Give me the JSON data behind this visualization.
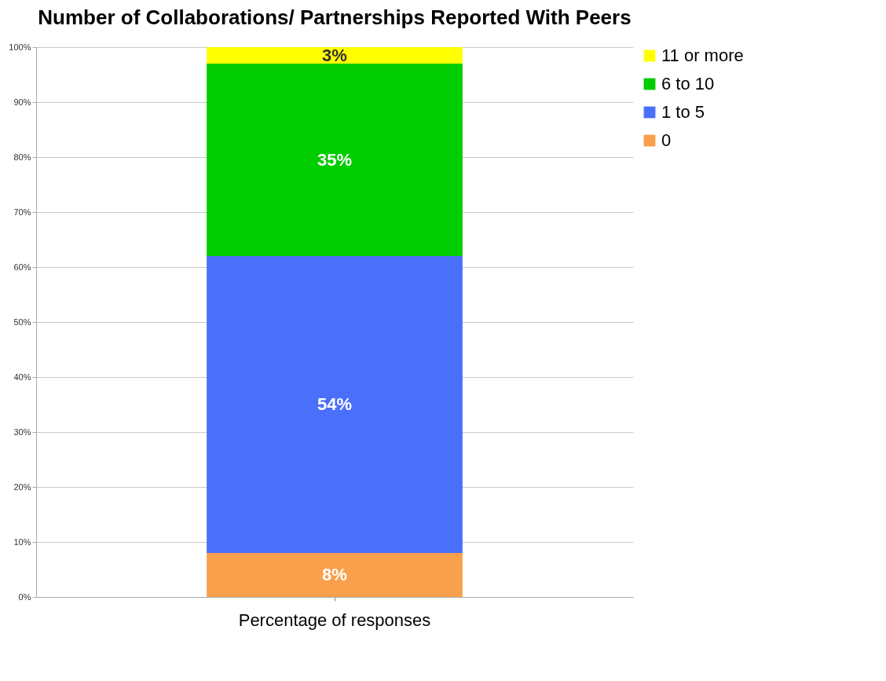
{
  "chart_data": {
    "type": "bar",
    "title": "Number of Collaborations/ Partnerships Reported With Peers",
    "categories": [
      "Percentage of responses"
    ],
    "stacked": true,
    "series": [
      {
        "name": "0",
        "color": "#f9a04c",
        "values": [
          8
        ],
        "value_labels": [
          "8%"
        ]
      },
      {
        "name": "1 to 5",
        "color": "#4a6ffb",
        "values": [
          54
        ],
        "value_labels": [
          "54%"
        ]
      },
      {
        "name": "6 to 10",
        "color": "#00cc00",
        "values": [
          35
        ],
        "value_labels": [
          "35%"
        ]
      },
      {
        "name": "11 or more",
        "color": "#ffff00",
        "values": [
          3
        ],
        "value_labels": [
          "3%"
        ]
      }
    ],
    "ylim": [
      0,
      100
    ],
    "yticks": [
      {
        "value": 0,
        "label": "0%"
      },
      {
        "value": 10,
        "label": "10%"
      },
      {
        "value": 20,
        "label": "20%"
      },
      {
        "value": 30,
        "label": "30%"
      },
      {
        "value": 40,
        "label": "40%"
      },
      {
        "value": 50,
        "label": "50%"
      },
      {
        "value": 60,
        "label": "60%"
      },
      {
        "value": 70,
        "label": "70%"
      },
      {
        "value": 80,
        "label": "80%"
      },
      {
        "value": 90,
        "label": "90%"
      },
      {
        "value": 100,
        "label": "100%"
      }
    ],
    "grid": "y",
    "legend": "right"
  }
}
